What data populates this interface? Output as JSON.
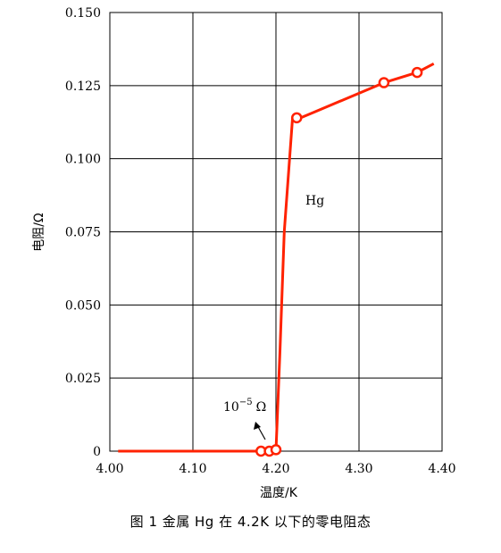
{
  "chart_data": {
    "type": "line",
    "xlabel": "温度/K",
    "ylabel": "电阻/Ω",
    "xlim": [
      4.0,
      4.4
    ],
    "ylim": [
      0,
      0.15
    ],
    "x_ticks": [
      "4.00",
      "4.10",
      "4.20",
      "4.30",
      "4.40"
    ],
    "y_ticks": [
      "0",
      "0.025",
      "0.050",
      "0.075",
      "0.100",
      "0.125",
      "0.150"
    ],
    "grid": true,
    "line_color": "#ff2200",
    "series": [
      {
        "x": [
          4.01,
          4.18,
          4.19,
          4.2,
          4.205,
          4.21,
          4.22,
          4.23,
          4.33,
          4.37,
          4.39
        ],
        "y": [
          0,
          0,
          0,
          0,
          0.035,
          0.075,
          0.114,
          0.114,
          0.126,
          0.1295,
          0.1325
        ]
      }
    ],
    "markers": {
      "x": [
        4.182,
        4.192,
        4.2,
        4.225,
        4.33,
        4.37
      ],
      "y": [
        0,
        0,
        0.0005,
        0.114,
        0.126,
        0.1295
      ]
    },
    "annotations": {
      "series_label": "Hg",
      "zero_label_base": "10",
      "zero_label_exp": "−5",
      "zero_label_unit": "Ω"
    }
  },
  "caption": "图  1    金属 Hg 在 4.2K 以下的零电阻态"
}
